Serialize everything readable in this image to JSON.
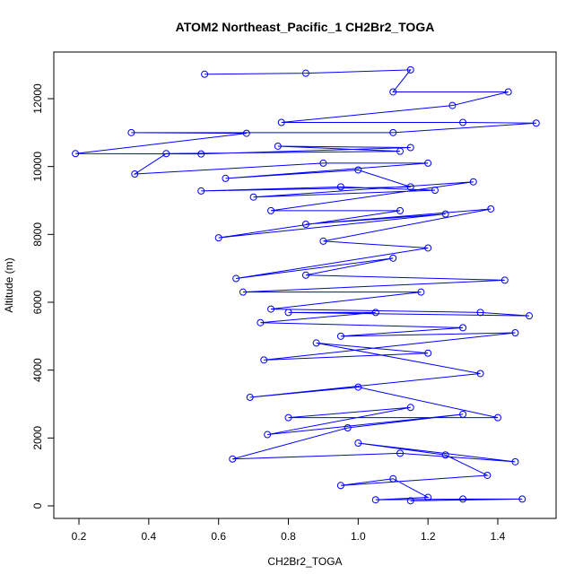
{
  "chart_data": {
    "type": "line",
    "title": "ATOM2 Northeast_Pacific_1 CH2Br2_TOGA",
    "x_label": "CH2Br2_TOGA",
    "y_label": "Altitude (m)",
    "xlim": [
      0.128,
      1.567
    ],
    "ylim": [
      -370,
      13375
    ],
    "xticks": [
      0.2,
      0.4,
      0.6,
      0.8,
      {
        "value": 1.0,
        "label": "1.0"
      },
      1.2,
      1.4
    ],
    "yticks": [
      0,
      2000,
      4000,
      6000,
      8000,
      10000,
      12000
    ],
    "series": [
      {
        "name": "CH2Br2_TOGA",
        "color": "#0000ff",
        "x": [
          0.56,
          0.85,
          1.15,
          1.1,
          1.43,
          1.27,
          0.78,
          1.3,
          1.51,
          1.1,
          0.35,
          0.68,
          0.19,
          0.55,
          1.15,
          0.77,
          1.12,
          0.45,
          0.36,
          0.9,
          1.2,
          0.62,
          1.0,
          1.15,
          0.55,
          0.95,
          1.22,
          0.7,
          1.33,
          0.75,
          1.12,
          0.6,
          1.25,
          0.85,
          1.38,
          0.9,
          1.2,
          0.65,
          1.1,
          0.85,
          1.42,
          0.67,
          1.18,
          0.75,
          1.35,
          1.49,
          0.8,
          1.05,
          0.72,
          1.3,
          0.95,
          1.45,
          0.73,
          1.2,
          0.88,
          1.35,
          0.69,
          1.0,
          1.4,
          0.8,
          1.15,
          0.74,
          1.3,
          0.97,
          0.64,
          1.12,
          1.45,
          1.0,
          1.25,
          1.37,
          0.95,
          1.1,
          1.2,
          1.05,
          1.3,
          1.47,
          1.15
        ],
        "values": [
          12720,
          12750,
          12850,
          12200,
          12200,
          11800,
          11300,
          11300,
          11280,
          11000,
          11000,
          10980,
          10380,
          10370,
          10560,
          10600,
          10450,
          10380,
          9780,
          10100,
          10100,
          9650,
          9900,
          9400,
          9280,
          9400,
          9300,
          9100,
          9550,
          8700,
          8700,
          7900,
          8600,
          8300,
          8750,
          7800,
          7600,
          6700,
          7300,
          6800,
          6650,
          6300,
          6300,
          5800,
          5700,
          5600,
          5700,
          5700,
          5400,
          5250,
          5000,
          5100,
          4300,
          4500,
          4800,
          3900,
          3200,
          3500,
          2600,
          2600,
          2900,
          2100,
          2700,
          2300,
          1380,
          1550,
          1300,
          1850,
          1500,
          900,
          600,
          800,
          250,
          180,
          200,
          200,
          150
        ]
      }
    ]
  }
}
